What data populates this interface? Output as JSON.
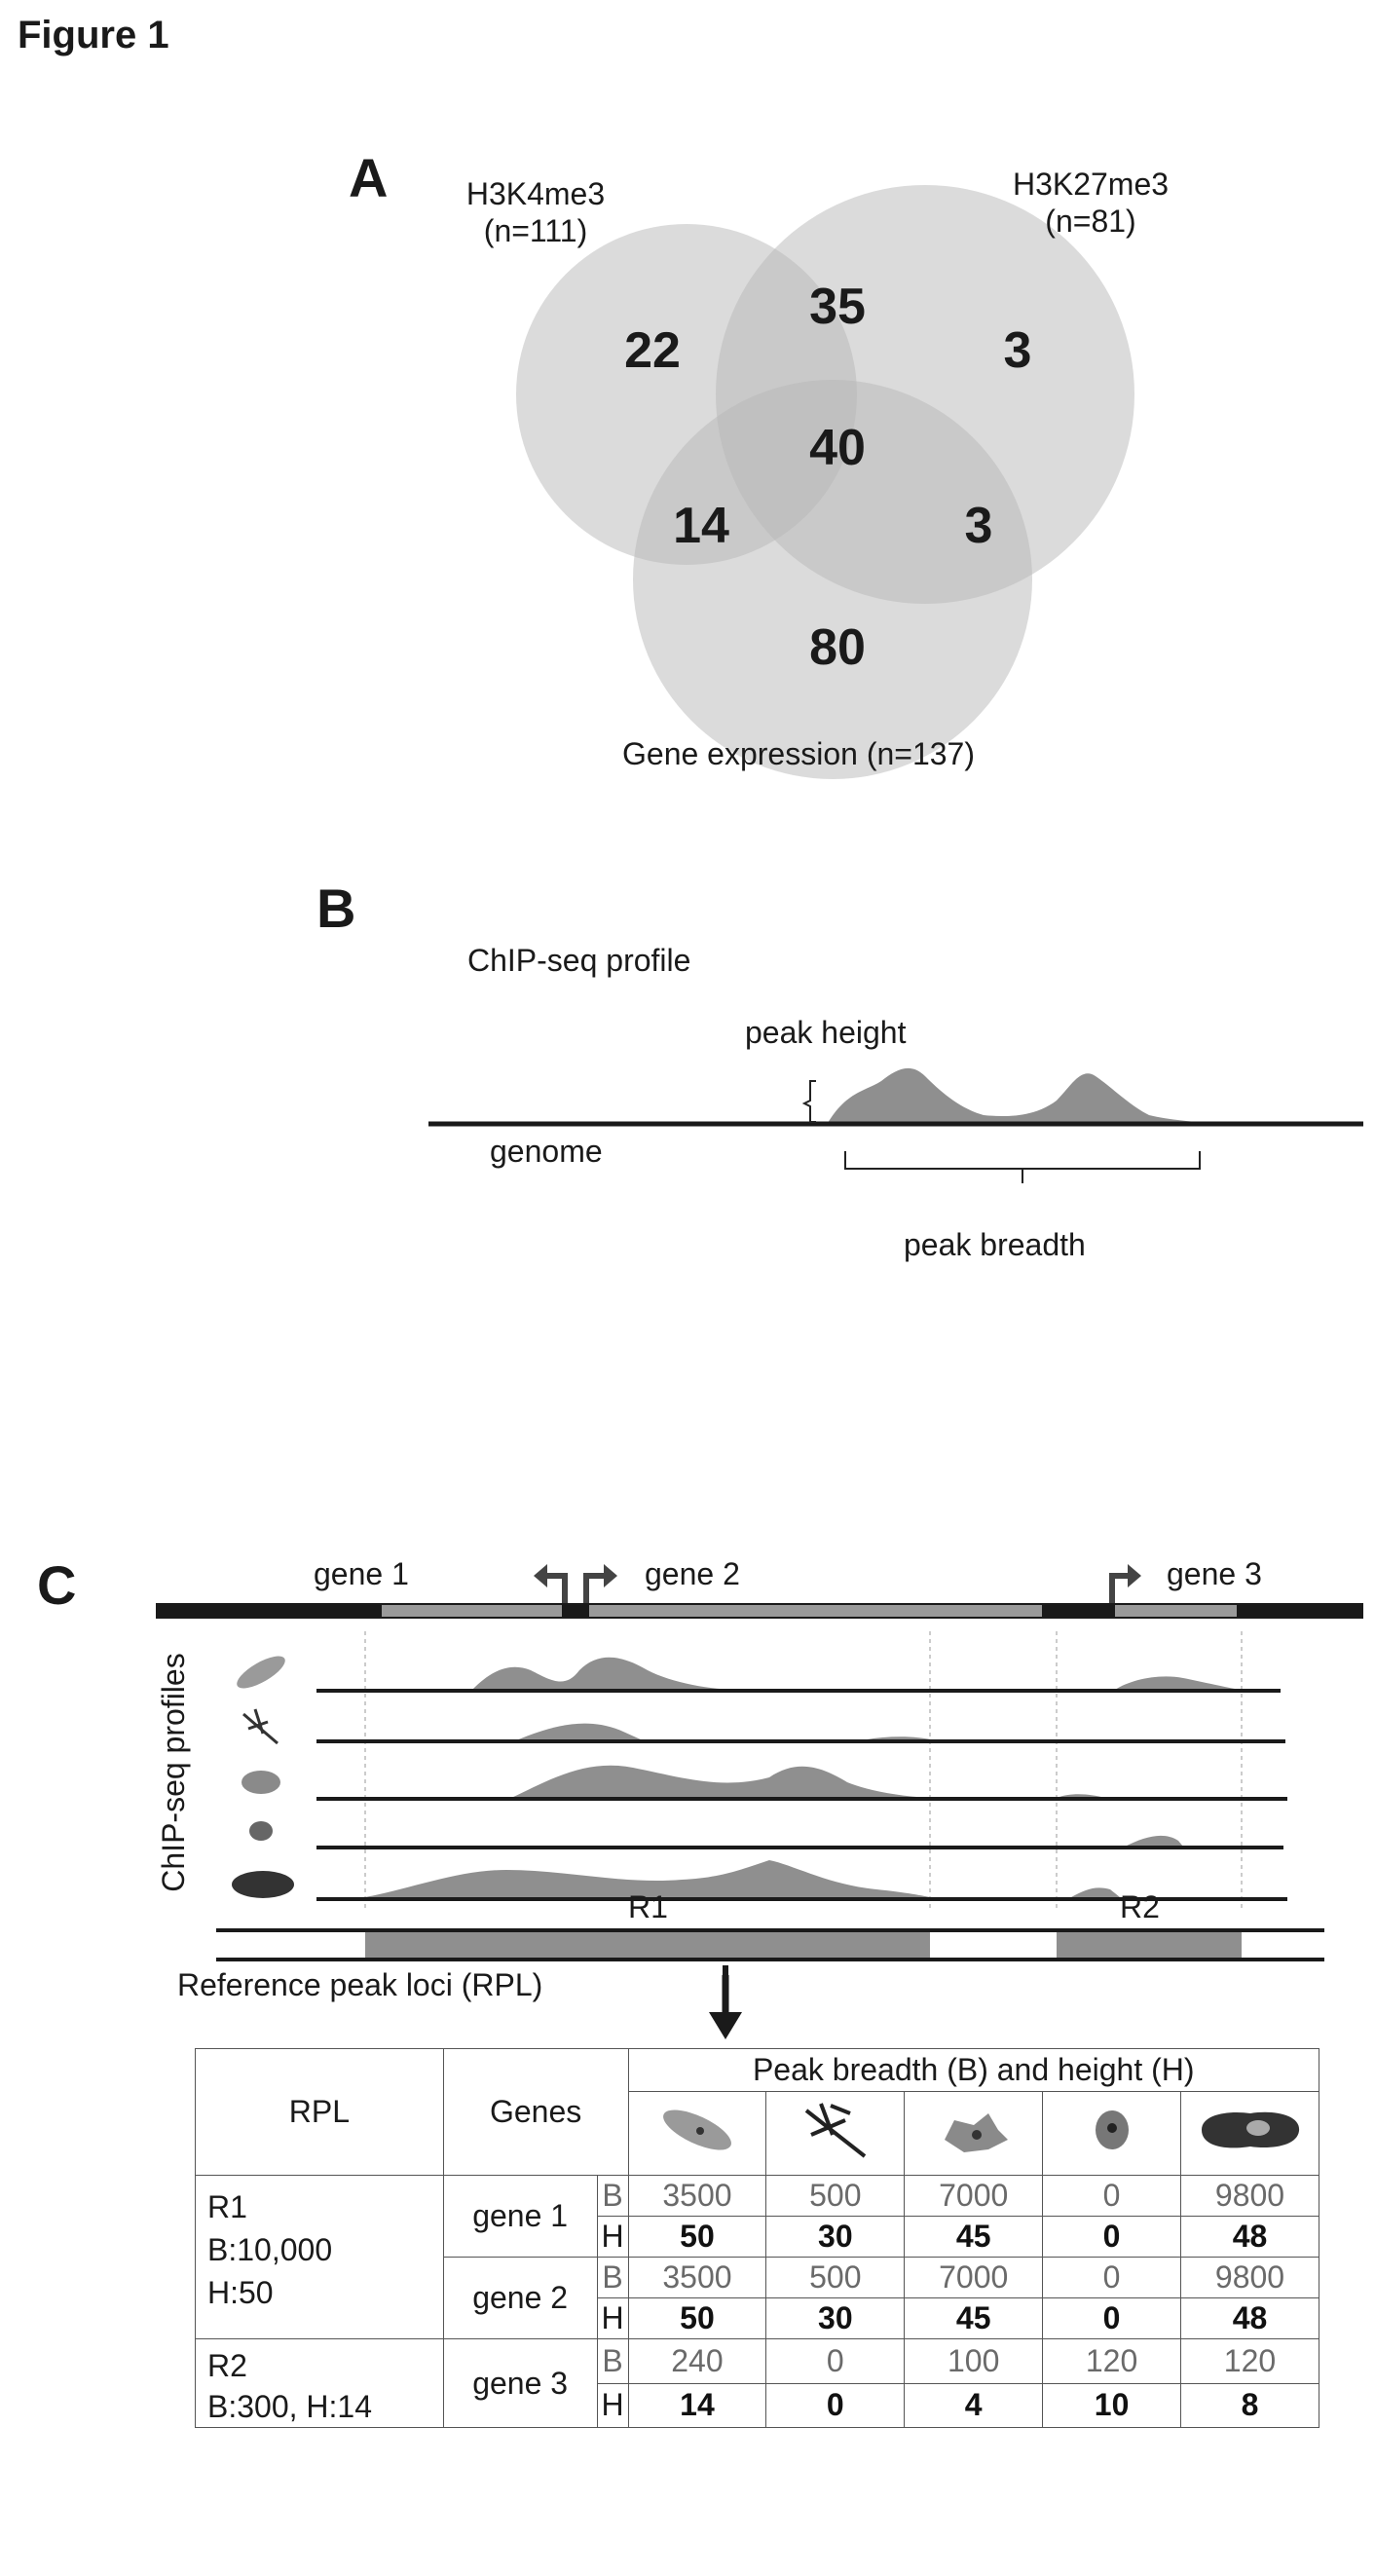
{
  "figure_title": "Figure 1",
  "panel_a": {
    "letter": "A",
    "sets": [
      {
        "name": "H3K4me3",
        "count_label": "(n=111)"
      },
      {
        "name": "H3K27me3",
        "count_label": "(n=81)"
      },
      {
        "name": "Gene expression (n=137)"
      }
    ],
    "regions": {
      "h3k4_only": "22",
      "h3k4_h3k27": "35",
      "h3k27_only": "3",
      "all_three": "40",
      "h3k4_expr": "14",
      "h3k27_expr": "3",
      "expr_only": "80"
    }
  },
  "panel_b": {
    "letter": "B",
    "title": "ChIP-seq profile",
    "peak_height_label": "peak height",
    "genome_label": "genome",
    "peak_breadth_label": "peak breadth"
  },
  "panel_c": {
    "letter": "C",
    "genes": [
      "gene 1",
      "gene 2",
      "gene 3"
    ],
    "profiles_label": "ChIP-seq profiles",
    "regions": [
      "R1",
      "R2"
    ],
    "rpl_label": "Reference peak loci (RPL)",
    "table": {
      "header_rpl": "RPL",
      "header_genes": "Genes",
      "header_peak": "Peak breadth (B) and height (H)",
      "rows": [
        {
          "rpl": [
            "R1",
            "B:10,000",
            "H:50"
          ],
          "gene": "gene 1",
          "B": [
            "3500",
            "500",
            "7000",
            "0",
            "9800"
          ],
          "H": [
            "50",
            "30",
            "45",
            "0",
            "48"
          ]
        },
        {
          "gene": "gene 2",
          "B": [
            "3500",
            "500",
            "7000",
            "0",
            "9800"
          ],
          "H": [
            "50",
            "30",
            "45",
            "0",
            "48"
          ]
        },
        {
          "rpl": [
            "R2",
            "B:300, H:14"
          ],
          "gene": "gene 3",
          "B": [
            "240",
            "0",
            "100",
            "120",
            "120"
          ],
          "H": [
            "14",
            "0",
            "4",
            "10",
            "8"
          ]
        }
      ],
      "b_letter": "B",
      "h_letter": "H"
    }
  },
  "colors": {
    "circle_fill": "#b8b8b8",
    "peak_fill": "#8f8f8f",
    "gene_bar": "#9a9a9a",
    "dark": "#1a1a1a"
  }
}
